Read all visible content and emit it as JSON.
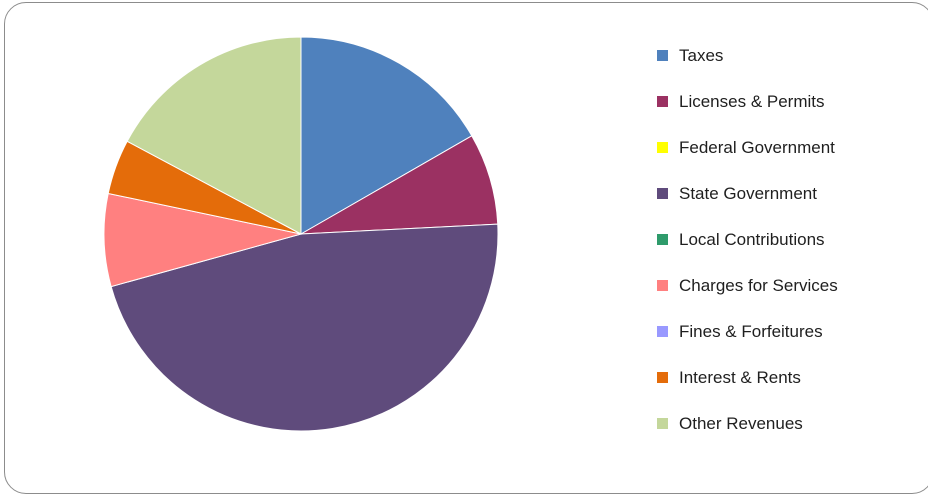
{
  "chart_data": {
    "type": "pie",
    "title": "",
    "legend_position": "right",
    "start": "12 o'clock, clockwise",
    "categories": [
      "Taxes",
      "Licenses & Permits",
      "Federal Government",
      "State Government",
      "Local Contributions",
      "Charges for Services",
      "Fines & Forfeitures",
      "Interest & Rents",
      "Other Revenues"
    ],
    "values": [
      16.7,
      7.5,
      0.0,
      46.5,
      0.0,
      7.6,
      0.0,
      4.5,
      17.2
    ],
    "unit": "% of total",
    "colors": [
      "#4f81bd",
      "#9b3162",
      "#ffff00",
      "#5f4b7c",
      "#2e9b6b",
      "#ff8080",
      "#9999ff",
      "#e46c0a",
      "#c4d79b"
    ]
  }
}
